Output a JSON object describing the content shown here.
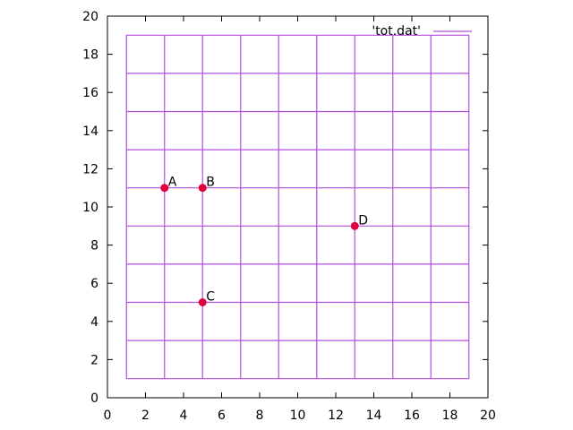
{
  "chart_data": {
    "type": "scatter",
    "xlim": [
      0,
      20
    ],
    "ylim": [
      0,
      20
    ],
    "x_ticks": [
      0,
      2,
      4,
      6,
      8,
      10,
      12,
      14,
      16,
      18,
      20
    ],
    "y_ticks": [
      0,
      2,
      4,
      6,
      8,
      10,
      12,
      14,
      16,
      18,
      20
    ],
    "legend_position": "top-right",
    "series": [
      {
        "name": "'tot.dat'",
        "type": "grid-lines",
        "color": "#b44fe0",
        "vertical_x": [
          1,
          3,
          5,
          7,
          9,
          11,
          13,
          15,
          17,
          19
        ],
        "horizontal_y": [
          1,
          3,
          5,
          7,
          9,
          11,
          13,
          15,
          17,
          19
        ],
        "extent": {
          "x": [
            1,
            19
          ],
          "y": [
            1,
            19
          ]
        }
      }
    ],
    "points": [
      {
        "label": "A",
        "x": 3,
        "y": 11
      },
      {
        "label": "B",
        "x": 5,
        "y": 11
      },
      {
        "label": "C",
        "x": 5,
        "y": 5
      },
      {
        "label": "D",
        "x": 13,
        "y": 9
      }
    ],
    "point_color": "#e0003c"
  }
}
